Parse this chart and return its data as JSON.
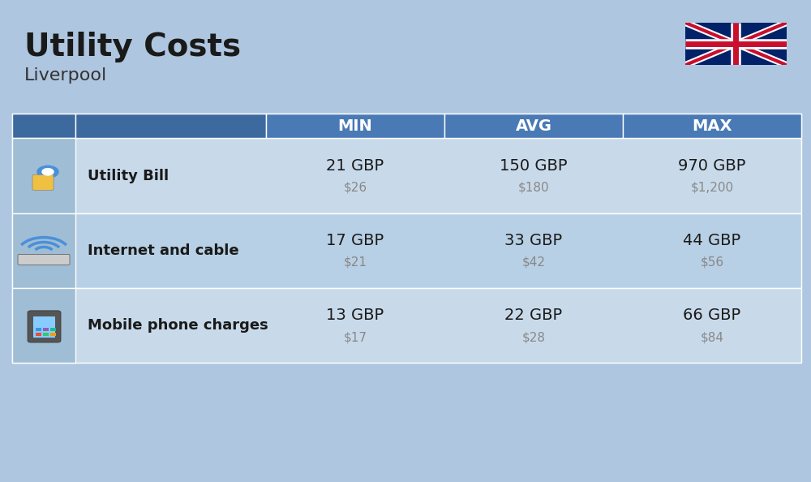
{
  "title": "Utility Costs",
  "subtitle": "Liverpool",
  "background_color": "#aec6e0",
  "header_color": "#4a7ab5",
  "header_text_color": "#ffffff",
  "row_color_odd": "#c8daea",
  "row_color_even": "#b8d0e5",
  "icon_col_color": "#9fbdd4",
  "col_headers": [
    "MIN",
    "AVG",
    "MAX"
  ],
  "rows": [
    {
      "label": "Utility Bill",
      "min_gbp": "21 GBP",
      "min_usd": "$26",
      "avg_gbp": "150 GBP",
      "avg_usd": "$180",
      "max_gbp": "970 GBP",
      "max_usd": "$1,200"
    },
    {
      "label": "Internet and cable",
      "min_gbp": "17 GBP",
      "min_usd": "$21",
      "avg_gbp": "33 GBP",
      "avg_usd": "$42",
      "max_gbp": "44 GBP",
      "max_usd": "$56"
    },
    {
      "label": "Mobile phone charges",
      "min_gbp": "13 GBP",
      "min_usd": "$17",
      "avg_gbp": "22 GBP",
      "avg_usd": "$28",
      "max_gbp": "66 GBP",
      "max_usd": "$84"
    }
  ],
  "title_fontsize": 28,
  "subtitle_fontsize": 16,
  "header_fontsize": 14,
  "label_fontsize": 13,
  "value_fontsize": 14,
  "usd_fontsize": 11,
  "flag_blue": "#012169",
  "flag_red": "#C8102E",
  "header_dark_color": "#3d6a9e"
}
